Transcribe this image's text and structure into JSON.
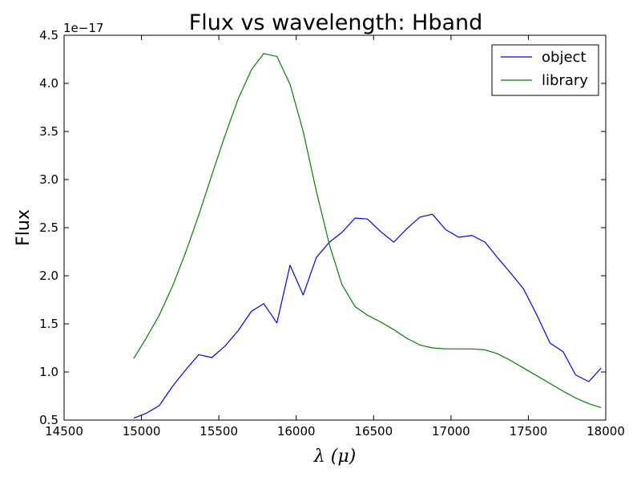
{
  "chart_data": {
    "type": "line",
    "title": "Flux vs wavelength: Hband",
    "xlabel": "λ (μ)",
    "ylabel": "Flux",
    "y_offset_label": "1e−17",
    "xlim": [
      14500,
      18000
    ],
    "ylim": [
      0.5,
      4.5
    ],
    "x_ticks": [
      14500,
      15000,
      15500,
      16000,
      16500,
      17000,
      17500,
      18000
    ],
    "x_tick_labels": [
      "14500",
      "15000",
      "15500",
      "16000",
      "16500",
      "17000",
      "17500",
      "18000"
    ],
    "y_ticks": [
      0.5,
      1.0,
      1.5,
      2.0,
      2.5,
      3.0,
      3.5,
      4.0,
      4.5
    ],
    "y_tick_labels": [
      "0.5",
      "1.0",
      "1.5",
      "2.0",
      "2.5",
      "3.0",
      "3.5",
      "4.0",
      "4.5"
    ],
    "grid": false,
    "legend_position": "top-right",
    "series": [
      {
        "name": "object",
        "color": "#0000ff",
        "x": [
          14950,
          15030,
          15115,
          15200,
          15285,
          15370,
          15455,
          15540,
          15625,
          15710,
          15790,
          15875,
          15960,
          16045,
          16130,
          16215,
          16295,
          16380,
          16460,
          16545,
          16630,
          16715,
          16800,
          16880,
          16965,
          17050,
          17135,
          17220,
          17300,
          17385,
          17470,
          17555,
          17640,
          17725,
          17805,
          17890,
          17970
        ],
        "y": [
          0.52,
          0.57,
          0.65,
          0.85,
          1.02,
          1.18,
          1.15,
          1.27,
          1.43,
          1.63,
          1.71,
          1.51,
          2.11,
          1.8,
          2.19,
          2.35,
          2.45,
          2.6,
          2.59,
          2.46,
          2.35,
          2.49,
          2.61,
          2.64,
          2.48,
          2.4,
          2.42,
          2.35,
          2.19,
          2.03,
          1.86,
          1.59,
          1.3,
          1.21,
          0.97,
          0.9,
          1.04
        ]
      },
      {
        "name": "library",
        "color": "#008000",
        "x": [
          14950,
          15030,
          15115,
          15200,
          15285,
          15370,
          15455,
          15540,
          15625,
          15710,
          15790,
          15875,
          15960,
          16045,
          16130,
          16215,
          16295,
          16380,
          16460,
          16545,
          16630,
          16715,
          16800,
          16880,
          16965,
          17050,
          17135,
          17220,
          17300,
          17385,
          17470,
          17555,
          17640,
          17725,
          17805,
          17890,
          17970
        ],
        "y": [
          1.14,
          1.35,
          1.59,
          1.89,
          2.24,
          2.63,
          3.05,
          3.46,
          3.84,
          4.14,
          4.31,
          4.28,
          3.99,
          3.5,
          2.88,
          2.32,
          1.91,
          1.68,
          1.59,
          1.52,
          1.44,
          1.35,
          1.28,
          1.25,
          1.24,
          1.24,
          1.24,
          1.23,
          1.19,
          1.12,
          1.04,
          0.96,
          0.88,
          0.8,
          0.73,
          0.67,
          0.63
        ]
      }
    ]
  }
}
